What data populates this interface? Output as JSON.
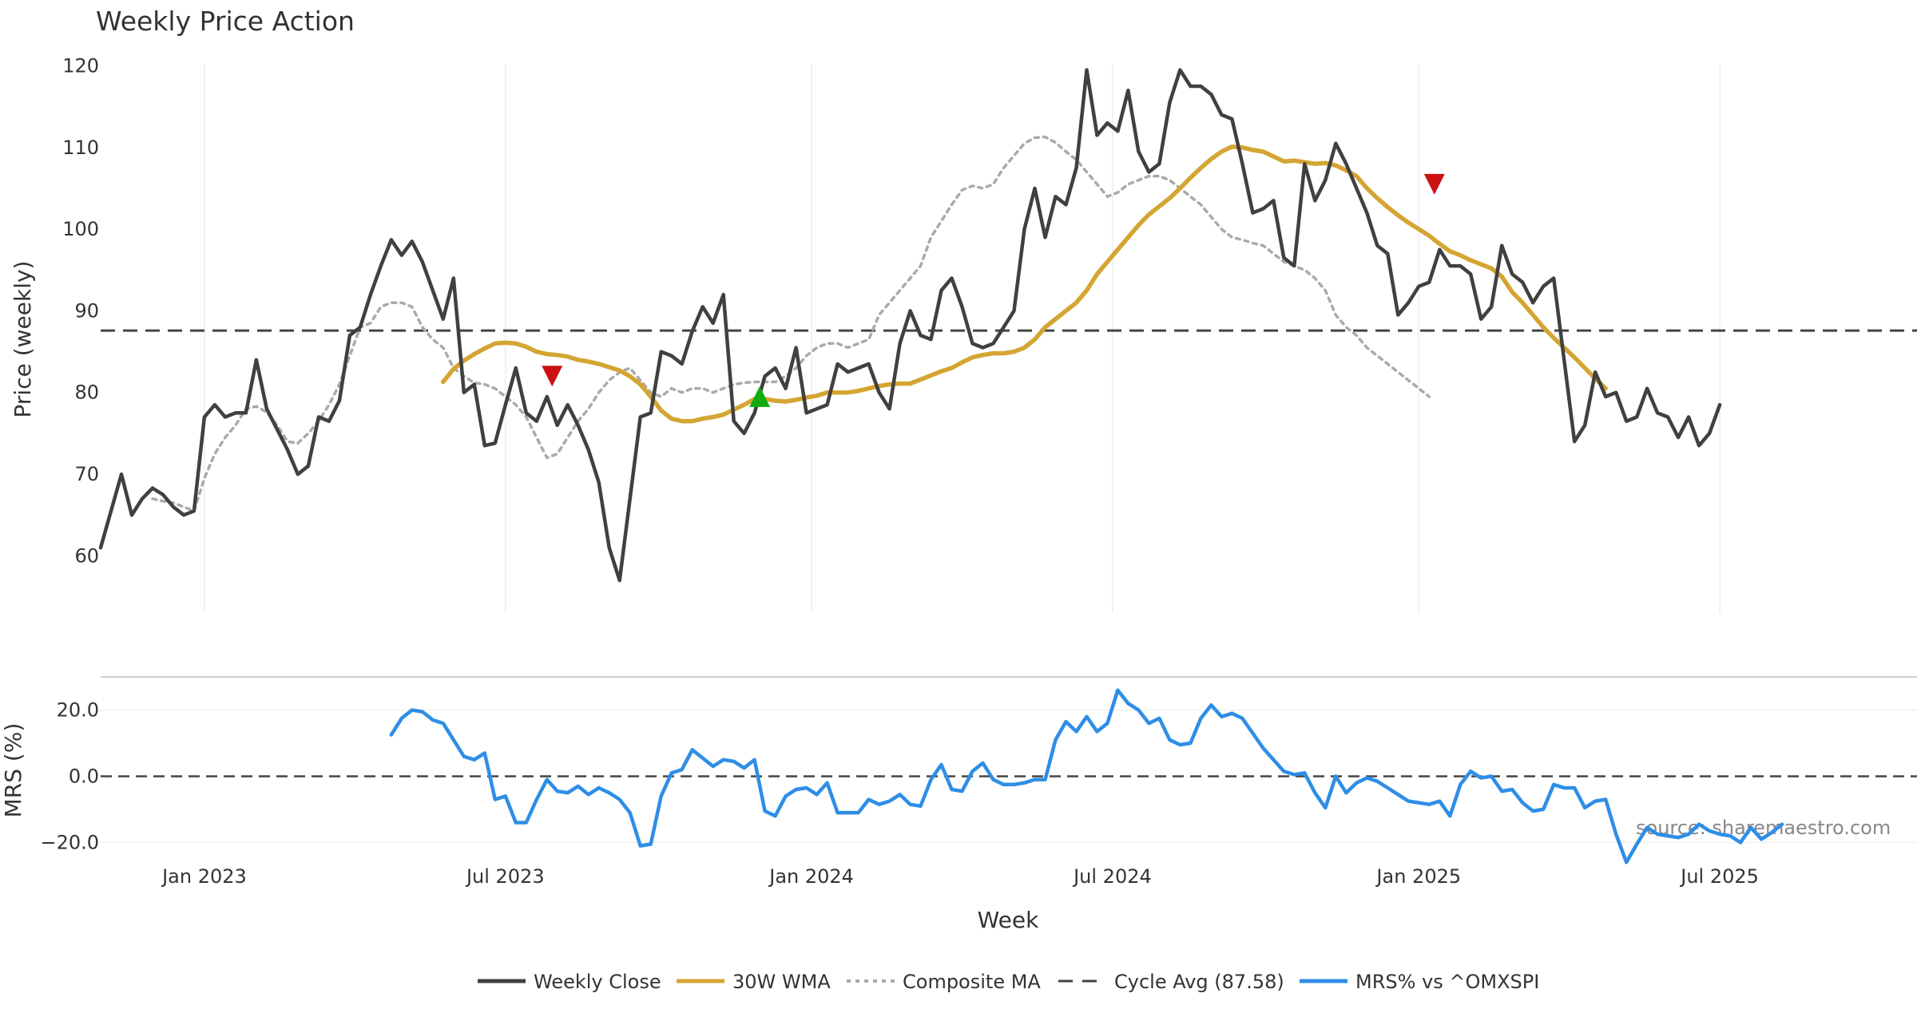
{
  "chart_data": {
    "type": "line",
    "title": "Weekly Price Action",
    "xlabel": "Week",
    "x_ticks": [
      "Jan 2023",
      "Jul 2023",
      "Jan 2024",
      "Jul 2024",
      "Jan 2025",
      "Jul 2025"
    ],
    "x_tick_weeks": [
      10,
      39,
      68.5,
      97.5,
      127,
      156
    ],
    "x_range_weeks": [
      0,
      175
    ],
    "source_note": "source: sharemaestro.com",
    "price_panel": {
      "ylabel": "Price (weekly)",
      "ylim": [
        53,
        122
      ],
      "y_ticks": [
        "60",
        "70",
        "80",
        "90",
        "100",
        "110",
        "120"
      ],
      "y_tick_values": [
        60,
        70,
        80,
        90,
        100,
        110,
        120
      ],
      "cycle_avg": 87.58,
      "series": [
        {
          "name": "Weekly Close",
          "color": "#404040",
          "values": [
            61,
            65.5,
            70,
            65,
            67,
            68.3,
            67.5,
            66,
            65,
            65.5,
            77,
            78.5,
            77,
            77.5,
            77.5,
            84,
            78,
            75.5,
            73,
            70,
            71,
            77,
            76.5,
            79,
            87,
            88,
            92,
            95.5,
            98.7,
            96.8,
            98.5,
            96,
            92.5,
            89,
            94,
            80,
            81,
            73.5,
            73.8,
            78.5,
            83,
            77.5,
            76.5,
            79.5,
            76,
            78.5,
            76,
            73,
            69,
            61,
            57,
            67,
            77,
            77.5,
            85,
            84.5,
            83.5,
            87.5,
            90.5,
            88.5,
            92,
            76.5,
            75,
            77.5,
            82,
            83,
            80.5,
            85.5,
            77.5,
            78,
            78.5,
            83.5,
            82.5,
            83,
            83.5,
            80,
            78,
            86,
            90,
            87,
            86.5,
            92.5,
            94,
            90.5,
            86,
            85.5,
            86,
            88,
            90,
            100,
            105,
            99,
            104,
            103,
            107.5,
            119.5,
            111.5,
            113,
            112,
            117,
            109.5,
            107,
            108,
            115.5,
            119.5,
            117.5,
            117.5,
            116.5,
            114,
            113.5,
            108,
            102,
            102.5,
            103.5,
            96.5,
            95.5,
            108,
            103.5,
            106,
            110.5,
            108,
            105,
            102,
            98,
            97,
            89.5,
            91,
            93,
            93.5,
            97.5,
            95.5,
            95.5,
            94.5,
            89,
            90.5,
            98,
            94.5,
            93.5,
            91,
            93,
            94,
            84,
            74,
            76,
            82.5,
            79.5,
            80,
            76.5,
            77,
            80.5,
            77.5,
            77,
            74.5,
            77,
            73.5,
            75,
            78.5
          ]
        },
        {
          "name": "30W WMA",
          "color": "#d4a532",
          "start_week": 33,
          "values": [
            81.3,
            82.9,
            83.9,
            84.7,
            85.4,
            86,
            86.1,
            86,
            85.6,
            85.0,
            84.7,
            84.6,
            84.4,
            84.0,
            83.8,
            83.5,
            83.1,
            82.7,
            82.0,
            81.0,
            79.5,
            77.8,
            76.8,
            76.5,
            76.5,
            76.8,
            77.0,
            77.3,
            77.9,
            78.5,
            79.2,
            79.2,
            79,
            78.9,
            79.1,
            79.4,
            79.6,
            80.0,
            80.0,
            80.0,
            80.2,
            80.5,
            80.8,
            81.0,
            81.1,
            81.1,
            81.6,
            82.1,
            82.6,
            83.0,
            83.7,
            84.3,
            84.6,
            84.8,
            84.8,
            85.0,
            85.5,
            86.5,
            88.0,
            89.0,
            90.0,
            91.0,
            92.5,
            94.5,
            96.0,
            97.5,
            99.0,
            100.5,
            101.8,
            102.8,
            103.8,
            105.0,
            106.3,
            107.5,
            108.6,
            109.5,
            110.1,
            110.0,
            109.7,
            109.5,
            108.9,
            108.3,
            108.4,
            108.2,
            108.0,
            108.1,
            107.8,
            107.2,
            106.5,
            105.0,
            103.8,
            102.7,
            101.7,
            100.8,
            100.0,
            99.2,
            98.2,
            97.3,
            96.8,
            96.2,
            95.7,
            95.2,
            94.2,
            92.3,
            91,
            89.5,
            88.0,
            86.7,
            85.5,
            84.3,
            83.0,
            81.7,
            80.5
          ]
        },
        {
          "name": "Composite MA",
          "color": "#aaaaaa",
          "values": [
            null,
            null,
            null,
            null,
            null,
            67.0,
            66.7,
            66.5,
            66.0,
            65.5,
            69.5,
            72.5,
            74.5,
            76.0,
            78.0,
            78.3,
            77.6,
            76,
            74,
            73.8,
            75,
            76.5,
            78.5,
            81.0,
            84.5,
            88,
            88.5,
            90.5,
            91,
            91,
            90.5,
            88,
            86.5,
            85.5,
            83.0,
            82,
            81.2,
            81,
            80.5,
            79.5,
            78.5,
            77.0,
            74.5,
            72,
            72.5,
            74.5,
            76.5,
            78,
            80,
            81.5,
            82.5,
            83,
            81.5,
            80,
            79.5,
            80.5,
            80.0,
            80.5,
            80.5,
            80.0,
            80.5,
            81.0,
            81.2,
            81.3,
            81.3,
            81.3,
            82,
            83,
            84.5,
            85.5,
            86,
            86,
            85.5,
            86,
            86.5,
            89.5,
            91,
            92.5,
            94.0,
            95.5,
            99.0,
            101.0,
            103.0,
            104.8,
            105.3,
            105.0,
            105.5,
            107.5,
            109.0,
            110.5,
            111.2,
            111.3,
            110.6,
            109.5,
            108.5,
            107.0,
            105.5,
            104.0,
            104.5,
            105.5,
            106,
            106.5,
            106.5,
            106.0,
            105,
            104,
            103,
            101.5,
            100,
            99,
            98.7,
            98.3,
            98.0,
            97.0,
            96.0,
            95.5,
            95.0,
            94.0,
            92.5,
            89.5,
            88,
            87,
            85.5,
            84.5,
            83.5,
            82.5,
            81.5,
            80.5,
            79.5
          ]
        }
      ],
      "signals": [
        {
          "type": "sell",
          "week": 43.5,
          "value": 82.0,
          "color": "#cc1111"
        },
        {
          "type": "buy",
          "week": 63.5,
          "value": 79.5,
          "color": "#11aa11"
        },
        {
          "type": "sell",
          "week": 128.5,
          "value": 105.5,
          "color": "#cc1111"
        }
      ]
    },
    "mrs_panel": {
      "ylabel": "MRS (%)",
      "ylim": [
        -24,
        30
      ],
      "y_ticks": [
        "20.0",
        "0.0",
        "−20.0"
      ],
      "y_tick_values": [
        20,
        0,
        -20
      ],
      "series": [
        {
          "name": "MRS% vs ^OMXSPI",
          "color": "#2e8ee6",
          "start_week": 28,
          "values": [
            12.5,
            17.5,
            20,
            19.5,
            17,
            16,
            11,
            6,
            5,
            7,
            -7,
            -6,
            -14,
            -14,
            -7,
            -1,
            -4.5,
            -5,
            -3,
            -5.5,
            -3.5,
            -5,
            -7,
            -11,
            -21,
            -20.5,
            -6,
            1,
            2,
            8,
            5.5,
            3,
            5,
            4.5,
            2.5,
            5,
            -10.5,
            -12,
            -6,
            -4,
            -3.5,
            -5.5,
            -2,
            -11,
            -11,
            -11,
            -7,
            -8.5,
            -7.5,
            -5.5,
            -8.5,
            -9,
            -1,
            3.5,
            -4,
            -4.5,
            1.5,
            4,
            -1,
            -2.5,
            -2.5,
            -2,
            -1,
            -1,
            11,
            16.5,
            13.5,
            18,
            13.5,
            16,
            26,
            22,
            20,
            16,
            17.5,
            11,
            9.5,
            10,
            17.5,
            21.5,
            18,
            19,
            17.5,
            13,
            8.5,
            5,
            1.5,
            0.5,
            1,
            -5,
            -9.5,
            0,
            -5,
            -2,
            -0.5,
            -1.5,
            -3.5,
            -5.5,
            -7.5,
            -8,
            -8.5,
            -7.5,
            -12,
            -2.5,
            1.5,
            -0.5,
            0,
            -4.5,
            -4,
            -8,
            -10.5,
            -10,
            -2.5,
            -3.5,
            -3.5,
            -9.5,
            -7.5,
            -7,
            -17.5,
            -26,
            -20.5,
            -15.5,
            -17.5,
            -18,
            -18.5,
            -17.5,
            -14.5,
            -16.5,
            -17.5,
            -18,
            -20,
            -15.5,
            -19,
            -17,
            -14.5
          ]
        }
      ]
    },
    "legend": {
      "position": "bottom-center",
      "entries": [
        {
          "label": "Weekly Close",
          "color": "#404040",
          "style": "solid"
        },
        {
          "label": "30W WMA",
          "color": "#d4a532",
          "style": "solid"
        },
        {
          "label": "Composite MA",
          "color": "#aaaaaa",
          "style": "dotted"
        },
        {
          "label": "Cycle Avg (87.58)",
          "color": "#444444",
          "style": "dashed"
        },
        {
          "label": "MRS% vs ^OMXSPI",
          "color": "#2e8ee6",
          "style": "solid"
        }
      ]
    }
  }
}
